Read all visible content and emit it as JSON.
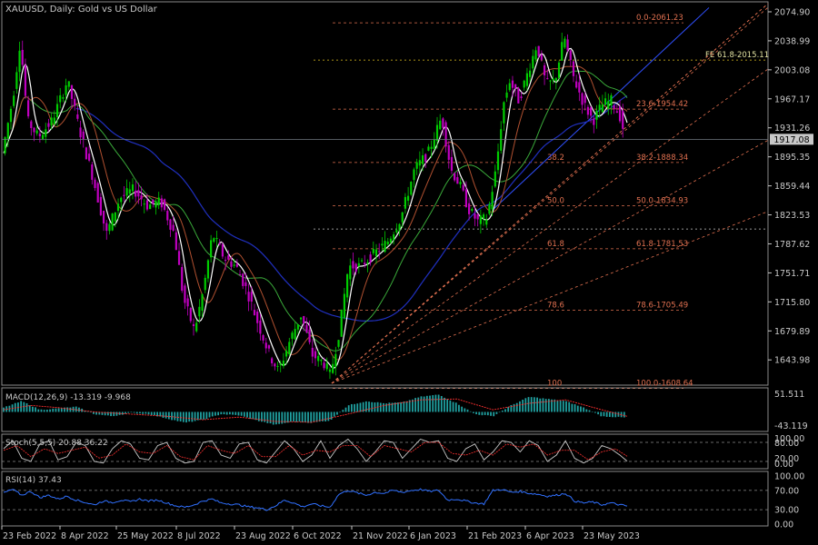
{
  "title": "XAUUSD, Daily:  Gold vs US Dollar",
  "colors": {
    "bg": "#000000",
    "axis": "#c8c8c8",
    "text": "#c8c8c8",
    "bull": "#00cc00",
    "bear": "#c000c0",
    "fib": "#e07050",
    "wma": "#ffffff",
    "ma_fast": "#b05030",
    "ma_slow": "#3aaa3a",
    "ma_long": "#2030c0",
    "price_tag": "#c8c8c8",
    "macd_hist": "#20a0a0",
    "macd_signal": "#ff3030",
    "stoch_main": "#c8c8c8",
    "stoch_signal": "#ff3030",
    "rsi": "#3070ff"
  },
  "chart_data": [
    {
      "type": "candlestick",
      "name": "main",
      "symbol": "XAUUSD",
      "ylim": [
        1615,
        2085
      ],
      "y_ticks": [
        "2074.90",
        "2038.99",
        "2003.08",
        "1967.17",
        "1931.26",
        "1895.35",
        "1859.44",
        "1823.53",
        "1787.62",
        "1751.71",
        "1715.80",
        "1679.89",
        "1643.98"
      ],
      "current_price": "1917.08",
      "x_labels": [
        "23 Feb 2022",
        "8 Apr 2022",
        "25 May 2022",
        "8 Jul 2022",
        "23 Aug 2022",
        "6 Oct 2022",
        "21 Nov 2022",
        "6 Jan 2023",
        "21 Feb 2023",
        "6 Apr 2023",
        "23 May 2023"
      ],
      "close_path": [
        [
          0,
          1900
        ],
        [
          12,
          1970
        ],
        [
          20,
          2040
        ],
        [
          28,
          1940
        ],
        [
          40,
          1920
        ],
        [
          55,
          1940
        ],
        [
          72,
          1990
        ],
        [
          85,
          1930
        ],
        [
          100,
          1870
        ],
        [
          115,
          1800
        ],
        [
          130,
          1845
        ],
        [
          145,
          1855
        ],
        [
          160,
          1835
        ],
        [
          175,
          1840
        ],
        [
          190,
          1800
        ],
        [
          200,
          1720
        ],
        [
          212,
          1680
        ],
        [
          222,
          1730
        ],
        [
          232,
          1800
        ],
        [
          245,
          1770
        ],
        [
          258,
          1760
        ],
        [
          270,
          1730
        ],
        [
          282,
          1690
        ],
        [
          295,
          1650
        ],
        [
          305,
          1630
        ],
        [
          318,
          1670
        ],
        [
          330,
          1700
        ],
        [
          342,
          1650
        ],
        [
          355,
          1640
        ],
        [
          362,
          1625
        ],
        [
          372,
          1680
        ],
        [
          382,
          1760
        ],
        [
          395,
          1760
        ],
        [
          410,
          1775
        ],
        [
          425,
          1790
        ],
        [
          440,
          1820
        ],
        [
          455,
          1880
        ],
        [
          470,
          1900
        ],
        [
          485,
          1945
        ],
        [
          495,
          1880
        ],
        [
          505,
          1860
        ],
        [
          515,
          1830
        ],
        [
          525,
          1815
        ],
        [
          535,
          1820
        ],
        [
          545,
          1880
        ],
        [
          553,
          1960
        ],
        [
          560,
          1990
        ],
        [
          570,
          1965
        ],
        [
          580,
          2000
        ],
        [
          590,
          2035
        ],
        [
          600,
          1985
        ],
        [
          610,
          1990
        ],
        [
          620,
          2045
        ],
        [
          630,
          1995
        ],
        [
          642,
          1960
        ],
        [
          652,
          1940
        ],
        [
          662,
          1960
        ],
        [
          672,
          1965
        ],
        [
          682,
          1945
        ],
        [
          688,
          1917
        ]
      ],
      "fib_levels": [
        {
          "label": "0.0-2061.23",
          "price": 2061.23
        },
        {
          "label": "23.6-1954.42",
          "price": 1954.42
        },
        {
          "label": "38.2-1888.34",
          "price": 1888.34,
          "mid_label": "38.2"
        },
        {
          "label": "50.0-1834.93",
          "price": 1834.93,
          "mid_label": "50.0"
        },
        {
          "label": "61.8-1781.53",
          "price": 1781.53,
          "mid_label": "61.8"
        },
        {
          "label": "78.6-1705.49",
          "price": 1705.49,
          "mid_label": "78.6"
        },
        {
          "label": "100.0-1608.64",
          "price": 1608.64,
          "mid_label": "100"
        }
      ],
      "fe_level": {
        "label": "FE 61.8-2015.11",
        "price": 2015.11
      }
    },
    {
      "type": "line",
      "name": "macd",
      "label": "MACD(12,26,9) -13.319 -9.968",
      "y_ticks": [
        "51.511",
        "-43.119"
      ],
      "ylim": [
        -43.119,
        51.511
      ],
      "histogram_path": [
        [
          0,
          10
        ],
        [
          20,
          25
        ],
        [
          40,
          5
        ],
        [
          60,
          8
        ],
        [
          80,
          12
        ],
        [
          100,
          -5
        ],
        [
          120,
          -10
        ],
        [
          140,
          -2
        ],
        [
          160,
          -5
        ],
        [
          180,
          -15
        ],
        [
          200,
          -25
        ],
        [
          220,
          -18
        ],
        [
          240,
          -5
        ],
        [
          260,
          -8
        ],
        [
          280,
          -20
        ],
        [
          300,
          -30
        ],
        [
          320,
          -22
        ],
        [
          340,
          -25
        ],
        [
          360,
          -20
        ],
        [
          380,
          15
        ],
        [
          400,
          25
        ],
        [
          420,
          20
        ],
        [
          440,
          22
        ],
        [
          460,
          35
        ],
        [
          480,
          40
        ],
        [
          500,
          20
        ],
        [
          520,
          -5
        ],
        [
          540,
          -10
        ],
        [
          560,
          15
        ],
        [
          580,
          35
        ],
        [
          600,
          30
        ],
        [
          620,
          25
        ],
        [
          640,
          10
        ],
        [
          660,
          -10
        ],
        [
          688,
          -13.3
        ]
      ],
      "signal_path": [
        [
          0,
          5
        ],
        [
          30,
          15
        ],
        [
          60,
          10
        ],
        [
          100,
          0
        ],
        [
          140,
          -5
        ],
        [
          180,
          -10
        ],
        [
          220,
          -18
        ],
        [
          260,
          -12
        ],
        [
          300,
          -22
        ],
        [
          340,
          -24
        ],
        [
          380,
          -5
        ],
        [
          420,
          15
        ],
        [
          460,
          28
        ],
        [
          500,
          30
        ],
        [
          540,
          5
        ],
        [
          580,
          20
        ],
        [
          620,
          28
        ],
        [
          660,
          5
        ],
        [
          688,
          -10
        ]
      ]
    },
    {
      "type": "line",
      "name": "stochastic",
      "label": "Stoch(5,5,5) 20.88 36.22",
      "y_ticks": [
        "100.00",
        "80.00",
        "20.00",
        "0.00"
      ],
      "ylim": [
        0,
        100
      ],
      "levels": [
        80,
        20
      ],
      "main_path": [
        [
          0,
          60
        ],
        [
          10,
          85
        ],
        [
          20,
          30
        ],
        [
          30,
          20
        ],
        [
          40,
          75
        ],
        [
          50,
          85
        ],
        [
          60,
          25
        ],
        [
          70,
          35
        ],
        [
          80,
          80
        ],
        [
          90,
          70
        ],
        [
          100,
          20
        ],
        [
          110,
          15
        ],
        [
          120,
          60
        ],
        [
          130,
          85
        ],
        [
          140,
          75
        ],
        [
          150,
          30
        ],
        [
          160,
          25
        ],
        [
          170,
          70
        ],
        [
          180,
          80
        ],
        [
          190,
          30
        ],
        [
          200,
          15
        ],
        [
          210,
          20
        ],
        [
          220,
          80
        ],
        [
          230,
          85
        ],
        [
          240,
          40
        ],
        [
          250,
          30
        ],
        [
          260,
          75
        ],
        [
          270,
          80
        ],
        [
          280,
          25
        ],
        [
          290,
          15
        ],
        [
          300,
          50
        ],
        [
          310,
          85
        ],
        [
          320,
          60
        ],
        [
          330,
          20
        ],
        [
          340,
          40
        ],
        [
          350,
          85
        ],
        [
          360,
          30
        ],
        [
          370,
          70
        ],
        [
          380,
          90
        ],
        [
          390,
          60
        ],
        [
          400,
          20
        ],
        [
          410,
          50
        ],
        [
          420,
          85
        ],
        [
          430,
          80
        ],
        [
          440,
          30
        ],
        [
          450,
          60
        ],
        [
          460,
          90
        ],
        [
          470,
          80
        ],
        [
          480,
          85
        ],
        [
          490,
          30
        ],
        [
          500,
          20
        ],
        [
          510,
          60
        ],
        [
          520,
          75
        ],
        [
          530,
          25
        ],
        [
          540,
          50
        ],
        [
          550,
          85
        ],
        [
          560,
          80
        ],
        [
          570,
          50
        ],
        [
          580,
          85
        ],
        [
          590,
          70
        ],
        [
          600,
          20
        ],
        [
          610,
          40
        ],
        [
          620,
          85
        ],
        [
          630,
          30
        ],
        [
          640,
          15
        ],
        [
          650,
          30
        ],
        [
          660,
          70
        ],
        [
          670,
          60
        ],
        [
          680,
          40
        ],
        [
          688,
          20.88
        ]
      ],
      "signal_path": [
        [
          0,
          55
        ],
        [
          15,
          70
        ],
        [
          30,
          35
        ],
        [
          45,
          60
        ],
        [
          60,
          45
        ],
        [
          75,
          55
        ],
        [
          90,
          65
        ],
        [
          105,
          30
        ],
        [
          120,
          40
        ],
        [
          135,
          75
        ],
        [
          150,
          50
        ],
        [
          165,
          45
        ],
        [
          180,
          70
        ],
        [
          195,
          35
        ],
        [
          210,
          25
        ],
        [
          225,
          70
        ],
        [
          240,
          55
        ],
        [
          255,
          45
        ],
        [
          270,
          70
        ],
        [
          285,
          35
        ],
        [
          300,
          35
        ],
        [
          315,
          70
        ],
        [
          330,
          40
        ],
        [
          345,
          55
        ],
        [
          360,
          50
        ],
        [
          375,
          70
        ],
        [
          390,
          70
        ],
        [
          405,
          35
        ],
        [
          420,
          70
        ],
        [
          435,
          60
        ],
        [
          450,
          50
        ],
        [
          465,
          80
        ],
        [
          480,
          80
        ],
        [
          495,
          45
        ],
        [
          510,
          40
        ],
        [
          525,
          55
        ],
        [
          540,
          40
        ],
        [
          555,
          75
        ],
        [
          570,
          65
        ],
        [
          585,
          75
        ],
        [
          600,
          40
        ],
        [
          615,
          55
        ],
        [
          630,
          55
        ],
        [
          645,
          25
        ],
        [
          660,
          50
        ],
        [
          675,
          60
        ],
        [
          688,
          36.22
        ]
      ]
    },
    {
      "type": "line",
      "name": "rsi",
      "label": "RSI(14) 37.43",
      "y_ticks": [
        "100.00",
        "70.00",
        "30.00",
        "0.00"
      ],
      "ylim": [
        0,
        100
      ],
      "levels": [
        70,
        30
      ],
      "path": [
        [
          0,
          65
        ],
        [
          10,
          72
        ],
        [
          20,
          60
        ],
        [
          30,
          68
        ],
        [
          40,
          55
        ],
        [
          50,
          60
        ],
        [
          60,
          52
        ],
        [
          70,
          58
        ],
        [
          80,
          50
        ],
        [
          90,
          45
        ],
        [
          100,
          40
        ],
        [
          110,
          48
        ],
        [
          120,
          45
        ],
        [
          130,
          50
        ],
        [
          140,
          46
        ],
        [
          150,
          52
        ],
        [
          160,
          48
        ],
        [
          170,
          50
        ],
        [
          180,
          44
        ],
        [
          190,
          38
        ],
        [
          200,
          35
        ],
        [
          210,
          40
        ],
        [
          220,
          48
        ],
        [
          230,
          52
        ],
        [
          240,
          44
        ],
        [
          250,
          42
        ],
        [
          260,
          40
        ],
        [
          270,
          36
        ],
        [
          280,
          34
        ],
        [
          290,
          30
        ],
        [
          300,
          38
        ],
        [
          310,
          50
        ],
        [
          320,
          44
        ],
        [
          330,
          36
        ],
        [
          340,
          42
        ],
        [
          350,
          38
        ],
        [
          360,
          35
        ],
        [
          370,
          62
        ],
        [
          380,
          70
        ],
        [
          390,
          65
        ],
        [
          400,
          60
        ],
        [
          410,
          66
        ],
        [
          420,
          64
        ],
        [
          430,
          70
        ],
        [
          440,
          66
        ],
        [
          450,
          70
        ],
        [
          460,
          72
        ],
        [
          470,
          68
        ],
        [
          480,
          70
        ],
        [
          490,
          50
        ],
        [
          500,
          52
        ],
        [
          510,
          48
        ],
        [
          520,
          44
        ],
        [
          530,
          42
        ],
        [
          540,
          70
        ],
        [
          550,
          72
        ],
        [
          560,
          66
        ],
        [
          570,
          68
        ],
        [
          580,
          64
        ],
        [
          590,
          62
        ],
        [
          600,
          58
        ],
        [
          610,
          60
        ],
        [
          620,
          64
        ],
        [
          630,
          48
        ],
        [
          640,
          44
        ],
        [
          650,
          46
        ],
        [
          660,
          40
        ],
        [
          670,
          44
        ],
        [
          680,
          40
        ],
        [
          688,
          37.43
        ]
      ]
    }
  ]
}
